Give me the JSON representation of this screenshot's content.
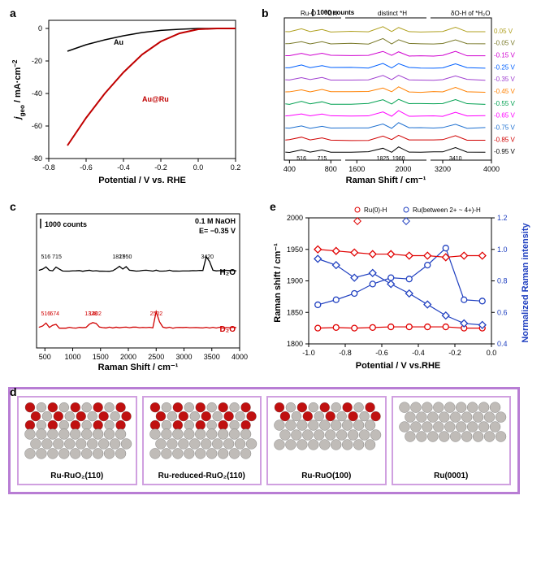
{
  "panel_a": {
    "label": "a",
    "xlabel": "Potential / V vs. RHE",
    "ylabel": "jgeo / mA·cm⁻²",
    "xticks": [
      -0.8,
      -0.6,
      -0.4,
      -0.2,
      0.0,
      0.2
    ],
    "yticks": [
      -80,
      -60,
      -40,
      -20,
      0
    ],
    "xlim": [
      -0.8,
      0.2
    ],
    "ylim": [
      -80,
      5
    ],
    "series": [
      {
        "name": "Au",
        "color": "#000000",
        "data": [
          [
            -0.7,
            -14
          ],
          [
            -0.6,
            -10
          ],
          [
            -0.5,
            -7
          ],
          [
            -0.4,
            -4.5
          ],
          [
            -0.3,
            -2.5
          ],
          [
            -0.2,
            -1.2
          ],
          [
            -0.1,
            -0.5
          ],
          [
            0.0,
            0
          ],
          [
            0.1,
            0
          ],
          [
            0.2,
            0
          ]
        ]
      },
      {
        "name": "Au@Ru",
        "color": "#c00000",
        "data": [
          [
            -0.7,
            -72
          ],
          [
            -0.6,
            -55
          ],
          [
            -0.5,
            -40
          ],
          [
            -0.4,
            -27
          ],
          [
            -0.3,
            -16
          ],
          [
            -0.2,
            -8
          ],
          [
            -0.1,
            -3
          ],
          [
            0.0,
            -0.5
          ],
          [
            0.1,
            0
          ],
          [
            0.2,
            0
          ]
        ]
      }
    ]
  },
  "panel_b": {
    "label": "b",
    "xlabel": "Raman Shift / cm⁻¹",
    "ylabel_badge": "1000 counts",
    "xticks": [
      400,
      800,
      1600,
      2000,
      3200,
      4000
    ],
    "top_labels": [
      "Ru-O",
      "*OH",
      "distinct *H",
      "δO-H of *H₂O"
    ],
    "potentials": [
      "0.05 V",
      "-0.05 V",
      "-0.15 V",
      "-0.25 V",
      "-0.35 V",
      "-0.45 V",
      "-0.55 V",
      "-0.65 V",
      "-0.75 V",
      "-0.85 V",
      "-0.95 V"
    ],
    "colors": [
      "#b0a020",
      "#7a7a2a",
      "#d000d0",
      "#0060ff",
      "#a040d0",
      "#ff8000",
      "#00a050",
      "#ff00ff",
      "#1e70d0",
      "#d00000",
      "#000000"
    ],
    "markers": {
      "516": 516,
      "715": 715,
      "1825": 1825,
      "1960": 1960,
      "3410": 3410
    }
  },
  "panel_c": {
    "label": "c",
    "xlabel": "Raman Shift / cm⁻¹",
    "ylabel_badge": "1000 counts",
    "cond1": "0.1 M NaOH",
    "cond2": "E= −0.35 V",
    "xticks": [
      500,
      1000,
      1500,
      2000,
      2500,
      3000,
      3500,
      4000
    ],
    "h2o": {
      "color": "#000000",
      "label": "H₂O",
      "peaks": [
        "516",
        "715",
        "1827",
        "1950",
        "3420"
      ]
    },
    "d2o": {
      "color": "#d00000",
      "label": "D₂O",
      "peaks": [
        "516",
        "674",
        "1328",
        "1402",
        "2502"
      ]
    }
  },
  "panel_e": {
    "label": "e",
    "xlabel": "Potential / V vs.RHE",
    "ylabel_left": "Raman shift / cm⁻¹",
    "ylabel_right": "Normalized Raman intensity",
    "xticks": [
      -1.0,
      -0.8,
      -0.6,
      -0.4,
      -0.2,
      0.0
    ],
    "yticks_left": [
      1800,
      1850,
      1900,
      1950,
      2000
    ],
    "yticks_right": [
      0.4,
      0.6,
      0.8,
      1.0,
      1.2
    ],
    "legend": [
      "Ru(0)-H",
      "Ru(between 2+ ~ 4+)-H"
    ],
    "series": {
      "circle_red": {
        "color": "#e00000",
        "data": [
          [
            -0.95,
            1825
          ],
          [
            -0.85,
            1826
          ],
          [
            -0.75,
            1825
          ],
          [
            -0.65,
            1826
          ],
          [
            -0.55,
            1827
          ],
          [
            -0.45,
            1827
          ],
          [
            -0.35,
            1827
          ],
          [
            -0.25,
            1827
          ],
          [
            -0.15,
            1825
          ],
          [
            -0.05,
            1825
          ]
        ]
      },
      "circle_blue": {
        "color": "#2040c0",
        "data": [
          [
            -0.95,
            1862
          ],
          [
            -0.85,
            1870
          ],
          [
            -0.75,
            1880
          ],
          [
            -0.65,
            1895
          ],
          [
            -0.55,
            1905
          ],
          [
            -0.45,
            1903
          ],
          [
            -0.35,
            1925
          ],
          [
            -0.25,
            1952
          ],
          [
            -0.15,
            1870
          ],
          [
            -0.05,
            1868
          ]
        ]
      },
      "diamond_red": {
        "color": "#e00000",
        "data": [
          [
            -0.95,
            1.0
          ],
          [
            -0.85,
            0.99
          ],
          [
            -0.75,
            0.98
          ],
          [
            -0.65,
            0.97
          ],
          [
            -0.55,
            0.97
          ],
          [
            -0.45,
            0.96
          ],
          [
            -0.35,
            0.96
          ],
          [
            -0.25,
            0.95
          ],
          [
            -0.15,
            0.96
          ],
          [
            -0.05,
            0.96
          ]
        ]
      },
      "diamond_blue": {
        "color": "#2040c0",
        "data": [
          [
            -0.95,
            0.94
          ],
          [
            -0.85,
            0.9
          ],
          [
            -0.75,
            0.82
          ],
          [
            -0.65,
            0.85
          ],
          [
            -0.55,
            0.78
          ],
          [
            -0.45,
            0.72
          ],
          [
            -0.35,
            0.65
          ],
          [
            -0.25,
            0.58
          ],
          [
            -0.15,
            0.53
          ],
          [
            -0.05,
            0.52
          ]
        ]
      }
    }
  },
  "panel_d": {
    "label": "d",
    "border_color": "#b87dd4",
    "structures": [
      {
        "name": "Ru-RuO₂(110)",
        "o_rows": 3,
        "ru_rows": 3
      },
      {
        "name": "Ru-reduced-RuO₂(110)",
        "o_rows": 3,
        "ru_rows": 3
      },
      {
        "name": "Ru-RuO(100)",
        "o_rows": 2,
        "ru_rows": 3
      },
      {
        "name": "Ru(0001)",
        "o_rows": 0,
        "ru_rows": 4
      }
    ],
    "o_color": "#c01010",
    "ru_color": "#c0bcb8"
  }
}
